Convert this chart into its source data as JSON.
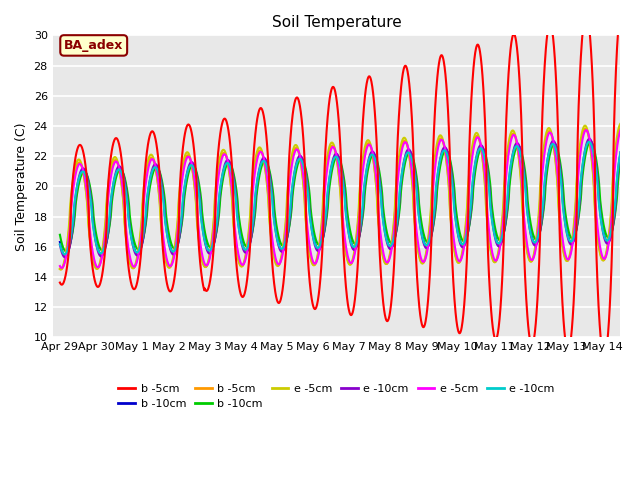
{
  "title": "Soil Temperature",
  "ylabel": "Soil Temperature (C)",
  "xlabel": "",
  "ylim": [
    10,
    30
  ],
  "background_color": "#e8e8e8",
  "fig_background": "#ffffff",
  "annotation_text": "BA_adex",
  "annotation_bg": "#ffffcc",
  "annotation_border": "#8b0000",
  "annotation_text_color": "#8b0000",
  "x_tick_labels": [
    "Apr 29",
    "Apr 30",
    "May 1",
    "May 2",
    "May 3",
    "May 4",
    "May 5",
    "May 6",
    "May 7",
    "May 8",
    "May 9",
    "May 10",
    "May 11",
    "May 12",
    "May 13",
    "May 14"
  ],
  "series": [
    {
      "label": "b -5cm",
      "color": "#ff0000",
      "lw": 1.5
    },
    {
      "label": "b -10cm",
      "color": "#0000cc",
      "lw": 1.5
    },
    {
      "label": "b -5cm",
      "color": "#ff9900",
      "lw": 1.5
    },
    {
      "label": "b -10cm",
      "color": "#00cc00",
      "lw": 1.5
    },
    {
      "label": "e -5cm",
      "color": "#cccc00",
      "lw": 1.5
    },
    {
      "label": "e -10cm",
      "color": "#8800cc",
      "lw": 1.5
    },
    {
      "label": "e -5cm",
      "color": "#ff00ff",
      "lw": 1.5
    },
    {
      "label": "e -10cm",
      "color": "#00cccc",
      "lw": 1.5
    }
  ]
}
